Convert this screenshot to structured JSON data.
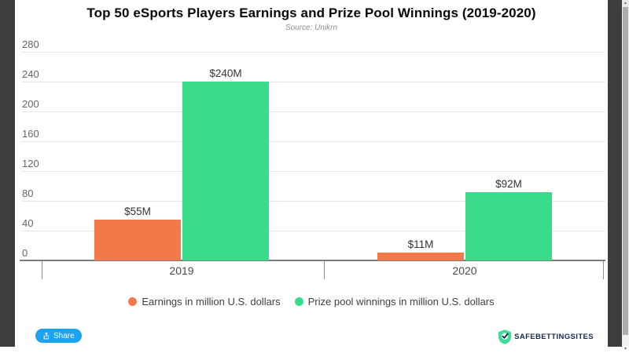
{
  "chart_data": {
    "type": "bar",
    "title": "Top 50 eSports Players Earnings and Prize Pool Winnings (2019-2020)",
    "subtitle": "Source: Unikrn",
    "categories": [
      "2019",
      "2020"
    ],
    "series": [
      {
        "name": "Earnings in million U.S. dollars",
        "color": "#F4794A",
        "values": [
          55,
          11
        ],
        "labels": [
          "$55M",
          "$11M"
        ]
      },
      {
        "name": "Prize pool winnings in million U.S. dollars",
        "color": "#3ADB8B",
        "values": [
          240,
          92
        ],
        "labels": [
          "$240M",
          "$92M"
        ]
      }
    ],
    "xlabel": "",
    "ylabel": "",
    "ylim": [
      0,
      280
    ],
    "yticks": [
      0,
      40,
      80,
      120,
      160,
      200,
      240,
      280
    ],
    "grid": true,
    "legend_position": "bottom"
  },
  "footer": {
    "share_label": "Share",
    "brand_name": "SAFEBETTINGSITES"
  },
  "colors": {
    "earnings_bar": "#F4794A",
    "prize_bar": "#3ADB8B",
    "share_button": "#1da1f2",
    "brand_shield": "#3DDC97",
    "frame": "#3e3e3e"
  }
}
